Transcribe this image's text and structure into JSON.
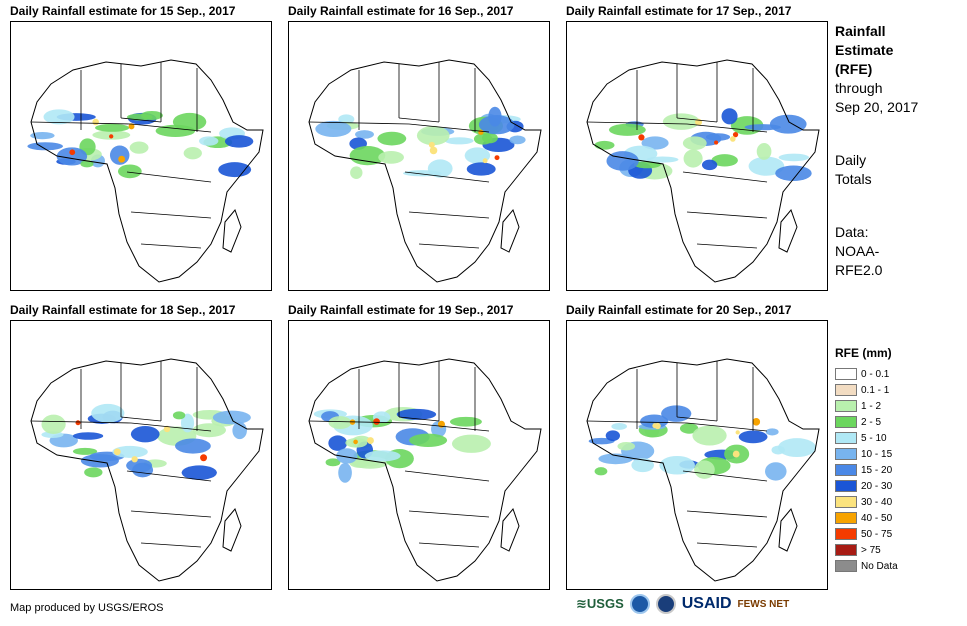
{
  "panels": [
    {
      "title": "Daily Rainfall estimate for 15 Sep., 2017"
    },
    {
      "title": "Daily Rainfall estimate for 16 Sep., 2017"
    },
    {
      "title": "Daily Rainfall estimate for 17 Sep., 2017"
    },
    {
      "title": "Daily Rainfall estimate for 18 Sep., 2017"
    },
    {
      "title": "Daily Rainfall estimate for 19 Sep., 2017"
    },
    {
      "title": "Daily Rainfall estimate for 20 Sep., 2017"
    }
  ],
  "sidebar": {
    "title_lines": [
      "Rainfall",
      "Estimate",
      "(RFE)"
    ],
    "through_lines": [
      "through",
      "Sep 20, 2017"
    ],
    "daily_lines": [
      "Daily",
      "Totals"
    ],
    "data_lines": [
      "Data:",
      "NOAA-",
      "RFE2.0"
    ]
  },
  "legend": {
    "title": "RFE (mm)",
    "items": [
      {
        "label": "0 - 0.1",
        "color": "#ffffff"
      },
      {
        "label": "0.1 - 1",
        "color": "#f2dcc2"
      },
      {
        "label": "1 - 2",
        "color": "#b9f0ae"
      },
      {
        "label": "2 - 5",
        "color": "#6cd65e"
      },
      {
        "label": "5 - 10",
        "color": "#b0e8f5"
      },
      {
        "label": "10 - 15",
        "color": "#78b4ef"
      },
      {
        "label": "15 - 20",
        "color": "#4a88e6"
      },
      {
        "label": "20 - 30",
        "color": "#1a55d6"
      },
      {
        "label": "30 - 40",
        "color": "#fbe37e"
      },
      {
        "label": "40 - 50",
        "color": "#f7a300"
      },
      {
        "label": "50 - 75",
        "color": "#f53b00"
      },
      {
        "label": "> 75",
        "color": "#a81c14"
      },
      {
        "label": "No Data",
        "color": "#8c8c8c"
      }
    ]
  },
  "footer": {
    "credit": "Map produced by USGS/EROS",
    "logos": {
      "usgs": "≋USGS",
      "usaid": "USAID",
      "fews": "FEWS NET"
    }
  }
}
